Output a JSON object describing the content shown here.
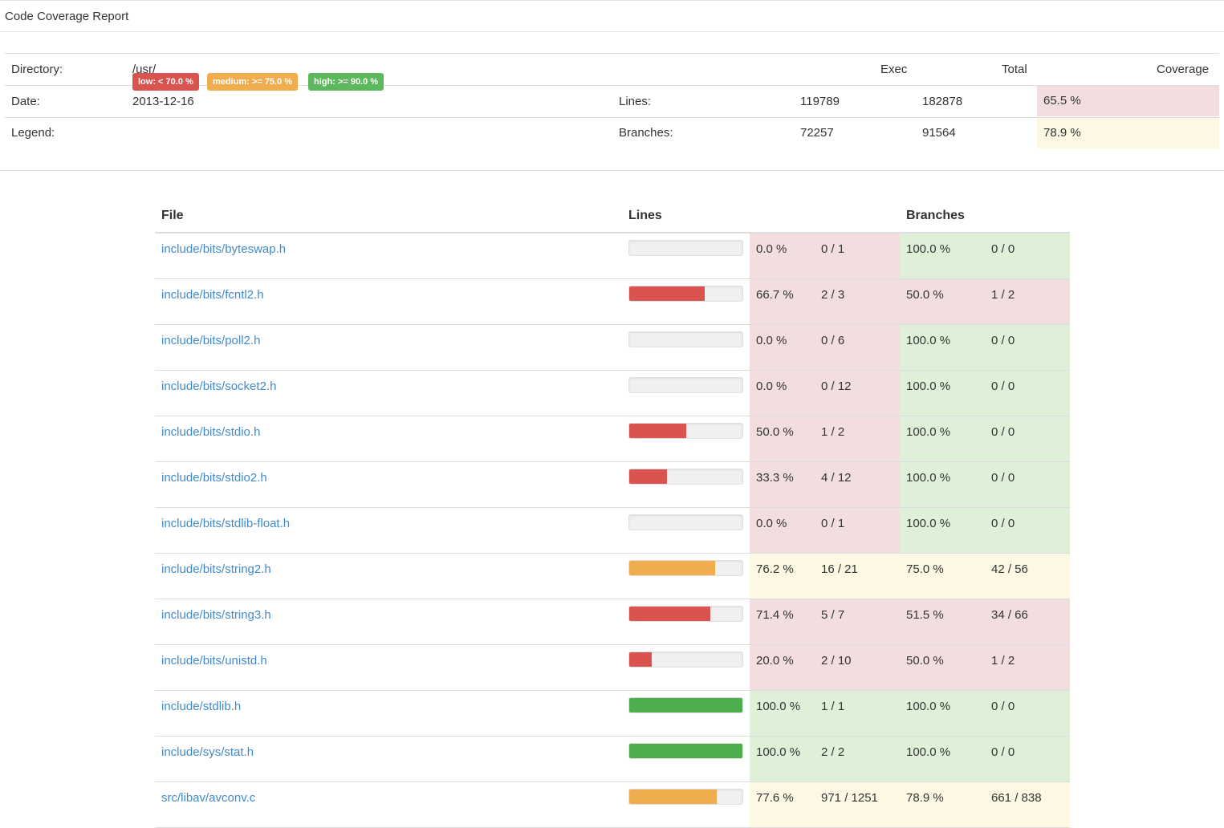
{
  "header": {
    "title": "Code Coverage Report"
  },
  "summary": {
    "directory_label": "Directory:",
    "directory_value": "/usr/",
    "date_label": "Date:",
    "date_value": "2013-12-16",
    "legend_label": "Legend:",
    "col_exec": "Exec",
    "col_total": "Total",
    "col_coverage": "Coverage",
    "lines_label": "Lines:",
    "lines_exec": "119789",
    "lines_total": "182878",
    "lines_coverage": "65.5 %",
    "branches_label": "Branches:",
    "branches_exec": "72257",
    "branches_total": "91564",
    "branches_coverage": "78.9 %",
    "legend": [
      {
        "label": "low: < 70.0 %",
        "color": "#d9534f"
      },
      {
        "label": "medium: >= 75.0 %",
        "color": "#f0ad4e"
      },
      {
        "label": "high: >= 90.0 %",
        "color": "#5cb85c"
      }
    ]
  },
  "colors": {
    "low_bg": "#f2dede",
    "medium_bg": "#fcf8e3",
    "high_bg": "#dff0d8",
    "low_bar": "#d9534f",
    "medium_bar": "#f0ad4e",
    "high_bar": "#4cae4c",
    "link": "#428bca"
  },
  "table": {
    "headers": {
      "file": "File",
      "lines": "Lines",
      "branches": "Branches"
    },
    "rows": [
      {
        "file": "include/bits/byteswap.h",
        "line_pct": "0.0 %",
        "line_ratio": "0 / 1",
        "line_fraction": 0.0,
        "branch_pct": "100.0 %",
        "branch_ratio": "0 / 0",
        "line_level": "low",
        "branch_level": "high"
      },
      {
        "file": "include/bits/fcntl2.h",
        "line_pct": "66.7 %",
        "line_ratio": "2 / 3",
        "line_fraction": 0.667,
        "branch_pct": "50.0 %",
        "branch_ratio": "1 / 2",
        "line_level": "low",
        "branch_level": "low"
      },
      {
        "file": "include/bits/poll2.h",
        "line_pct": "0.0 %",
        "line_ratio": "0 / 6",
        "line_fraction": 0.0,
        "branch_pct": "100.0 %",
        "branch_ratio": "0 / 0",
        "line_level": "low",
        "branch_level": "high"
      },
      {
        "file": "include/bits/socket2.h",
        "line_pct": "0.0 %",
        "line_ratio": "0 / 12",
        "line_fraction": 0.0,
        "branch_pct": "100.0 %",
        "branch_ratio": "0 / 0",
        "line_level": "low",
        "branch_level": "high"
      },
      {
        "file": "include/bits/stdio.h",
        "line_pct": "50.0 %",
        "line_ratio": "1 / 2",
        "line_fraction": 0.5,
        "branch_pct": "100.0 %",
        "branch_ratio": "0 / 0",
        "line_level": "low",
        "branch_level": "high"
      },
      {
        "file": "include/bits/stdio2.h",
        "line_pct": "33.3 %",
        "line_ratio": "4 / 12",
        "line_fraction": 0.333,
        "branch_pct": "100.0 %",
        "branch_ratio": "0 / 0",
        "line_level": "low",
        "branch_level": "high"
      },
      {
        "file": "include/bits/stdlib-float.h",
        "line_pct": "0.0 %",
        "line_ratio": "0 / 1",
        "line_fraction": 0.0,
        "branch_pct": "100.0 %",
        "branch_ratio": "0 / 0",
        "line_level": "low",
        "branch_level": "high"
      },
      {
        "file": "include/bits/string2.h",
        "line_pct": "76.2 %",
        "line_ratio": "16 / 21",
        "line_fraction": 0.762,
        "branch_pct": "75.0 %",
        "branch_ratio": "42 / 56",
        "line_level": "medium",
        "branch_level": "medium"
      },
      {
        "file": "include/bits/string3.h",
        "line_pct": "71.4 %",
        "line_ratio": "5 / 7",
        "line_fraction": 0.714,
        "branch_pct": "51.5 %",
        "branch_ratio": "34 / 66",
        "line_level": "low",
        "branch_level": "low"
      },
      {
        "file": "include/bits/unistd.h",
        "line_pct": "20.0 %",
        "line_ratio": "2 / 10",
        "line_fraction": 0.2,
        "branch_pct": "50.0 %",
        "branch_ratio": "1 / 2",
        "line_level": "low",
        "branch_level": "low"
      },
      {
        "file": "include/stdlib.h",
        "line_pct": "100.0 %",
        "line_ratio": "1 / 1",
        "line_fraction": 1.0,
        "branch_pct": "100.0 %",
        "branch_ratio": "0 / 0",
        "line_level": "high",
        "branch_level": "high"
      },
      {
        "file": "include/sys/stat.h",
        "line_pct": "100.0 %",
        "line_ratio": "2 / 2",
        "line_fraction": 1.0,
        "branch_pct": "100.0 %",
        "branch_ratio": "0 / 0",
        "line_level": "high",
        "branch_level": "high"
      },
      {
        "file": "src/libav/avconv.c",
        "line_pct": "77.6 %",
        "line_ratio": "971 / 1251",
        "line_fraction": 0.776,
        "branch_pct": "78.9 %",
        "branch_ratio": "661 / 838",
        "line_level": "medium",
        "branch_level": "medium"
      }
    ]
  }
}
